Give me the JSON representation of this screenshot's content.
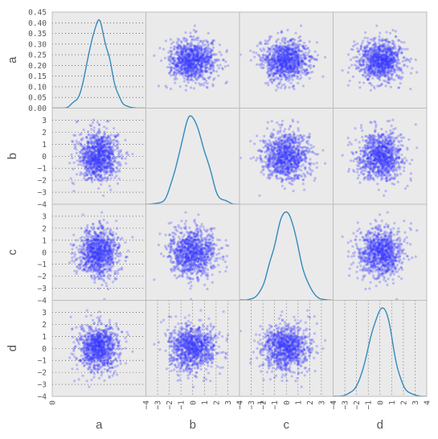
{
  "chart_data": {
    "type": "scatter-matrix",
    "variables": [
      "a",
      "b",
      "c",
      "d"
    ],
    "diagonal": "kde",
    "n_points_per_panel": 1000,
    "ranges": {
      "a": [
        0.0,
        0.45
      ],
      "b": [
        -4,
        4
      ],
      "c": [
        -4,
        4
      ],
      "d": [
        -4,
        4
      ]
    },
    "distributions": {
      "a": {
        "mean": 0.225,
        "sd": 0.05
      },
      "b": {
        "mean": 0.0,
        "sd": 1.0
      },
      "c": {
        "mean": 0.0,
        "sd": 1.0
      },
      "d": {
        "mean": 0.0,
        "sd": 1.0
      }
    },
    "y_ticks": {
      "a": [
        "0.45",
        "0.40",
        "0.35",
        "0.30",
        "0.25",
        "0.20",
        "0.15",
        "0.10",
        "0.05",
        "0.00"
      ],
      "b": [
        "3",
        "2",
        "1",
        "0",
        "−1",
        "−2",
        "−3",
        "−4"
      ],
      "c": [
        "3",
        "2",
        "1",
        "0",
        "−1",
        "−2",
        "−3",
        "−4"
      ],
      "d": [
        "3",
        "2",
        "1",
        "0",
        "−1",
        "−2",
        "−3",
        "−4"
      ]
    },
    "x_ticks": [
      "−4",
      "−3",
      "−2",
      "−1",
      "0",
      "1",
      "2",
      "3",
      "4"
    ],
    "point_color": "#3b3bff",
    "point_alpha": 0.28,
    "kde_color": "#348abd",
    "panel_background": "#eaeaea",
    "gridlines_on_diagonal_and_edges": true
  }
}
